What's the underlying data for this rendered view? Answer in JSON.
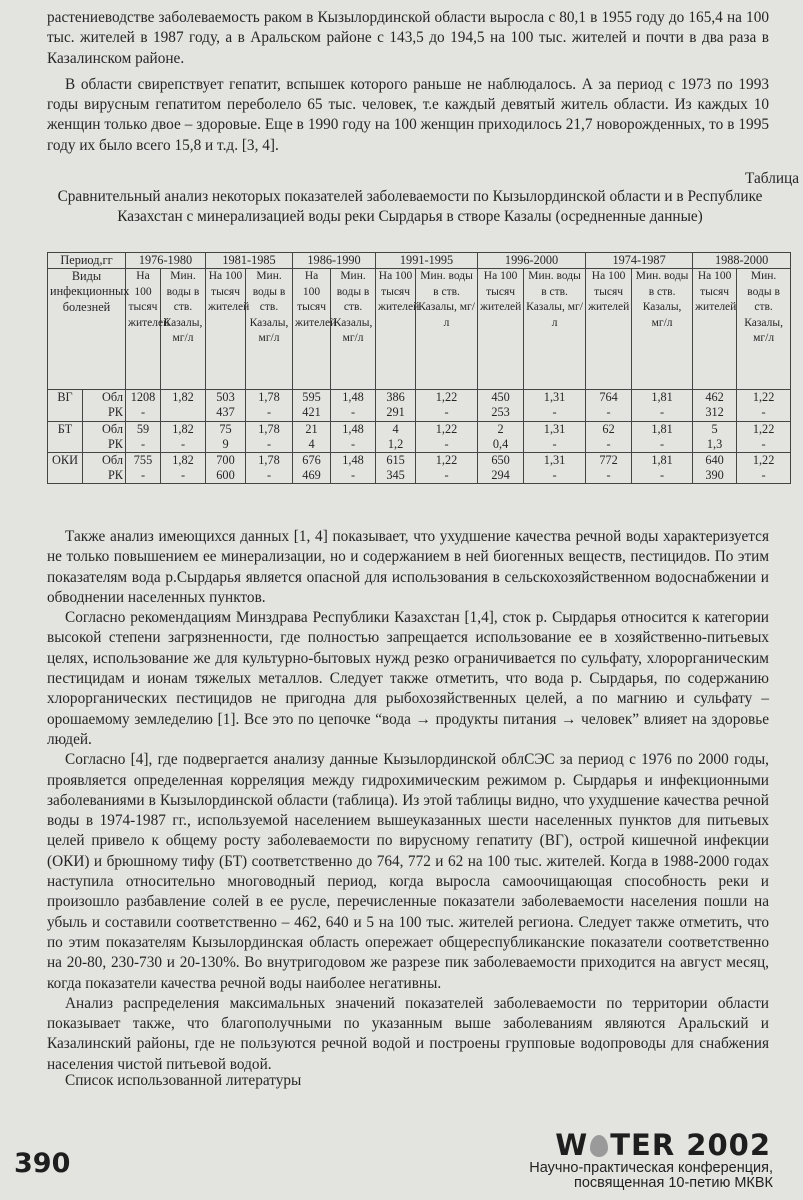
{
  "paragraphs_top": [
    "растениеводстве заболеваемость раком в Кызылординской области выросла с 80,1 в 1955 году до 165,4 на 100 тыс. жителей в 1987 году, а в Аральском районе с 143,5 до 194,5 на 100 тыс. жителей и почти в два раза в Казалинском районе.",
    "В области свирепствует гепатит, вспышек которого раньше не наблюдалось. А за период с 1973 по 1993 годы вирусным гепатитом переболело 65 тыс. человек, т.е каждый девятый житель области. Из каждых 10 женщин только двое – здоровые. Еще в 1990 году на 100 женщин приходилось 21,7 новорожденных, то в 1995 году их было всего 15,8 и т.д. [3, 4]."
  ],
  "table": {
    "label": "Таблица",
    "caption": "Сравнительный анализ некоторых показателей заболеваемости по Кызылординской области и в Республике Казахстан с минерализацией воды реки Сырдарья в створе Казалы (осредненные данные)",
    "period_header": "Период,гг",
    "type_header": "Виды инфекционных болезней",
    "periods": [
      "1976-1980",
      "1981-1985",
      "1986-1990",
      "1991-1995",
      "1996-2000",
      "1974-1987",
      "1988-2000"
    ],
    "subheaders": [
      [
        "На 100 тысяч жителей",
        "Мин. воды в ств. Казалы, мг/л"
      ],
      [
        "На 100 тысяч жителей",
        "Мин. воды в ств. Казалы, мг/л"
      ],
      [
        "На 100 тысяч жителей",
        "Мин. воды в ств. Казалы, мг/л"
      ],
      [
        "На 100 тысяч жителей",
        "Мин. воды в ств. Казалы, мг/л"
      ],
      [
        "На 100 тысяч жителей",
        "Мин. воды в ств. Казалы, мг/л"
      ],
      [
        "На 100 тысяч жителей",
        "Мин. воды в ств. Казалы, мг/л"
      ],
      [
        "На 100 тысяч жителей",
        "Мин. воды в ств. Казалы, мг/л"
      ]
    ],
    "region_labels": [
      "Обл",
      "РК"
    ],
    "rows": [
      {
        "disease": "ВГ",
        "values": [
          [
            "1208",
            "-"
          ],
          [
            "1,82",
            ""
          ],
          [
            "503",
            "437"
          ],
          [
            "1,78",
            "-"
          ],
          [
            "595",
            "421"
          ],
          [
            "1,48",
            "-"
          ],
          [
            "386",
            "291"
          ],
          [
            "1,22",
            "-"
          ],
          [
            "450",
            "253"
          ],
          [
            "1,31",
            "-"
          ],
          [
            "764",
            "-"
          ],
          [
            "1,81",
            "-"
          ],
          [
            "462",
            "312"
          ],
          [
            "1,22",
            "-"
          ]
        ]
      },
      {
        "disease": "БТ",
        "values": [
          [
            "59",
            "-"
          ],
          [
            "1,82",
            "-"
          ],
          [
            "75",
            "9"
          ],
          [
            "1,78",
            "-"
          ],
          [
            "21",
            "4"
          ],
          [
            "1,48",
            "-"
          ],
          [
            "4",
            "1,2"
          ],
          [
            "1,22",
            "-"
          ],
          [
            "2",
            "0,4"
          ],
          [
            "1,31",
            "-"
          ],
          [
            "62",
            "-"
          ],
          [
            "1,81",
            "-"
          ],
          [
            "5",
            "1,3"
          ],
          [
            "1,22",
            "-"
          ]
        ]
      },
      {
        "disease": "ОКИ",
        "values": [
          [
            "755",
            "-"
          ],
          [
            "1,82",
            "-"
          ],
          [
            "700",
            "600"
          ],
          [
            "1,78",
            "-"
          ],
          [
            "676",
            "469"
          ],
          [
            "1,48",
            "-"
          ],
          [
            "615",
            "345"
          ],
          [
            "1,22",
            "-"
          ],
          [
            "650",
            "294"
          ],
          [
            "1,31",
            "-"
          ],
          [
            "772",
            "-"
          ],
          [
            "1,81",
            "-"
          ],
          [
            "640",
            "390"
          ],
          [
            "1,22",
            "-"
          ]
        ]
      }
    ]
  },
  "paragraphs_bottom": [
    "Также анализ имеющихся данных [1, 4] показывает, что ухудшение качества речной воды характеризуется не только повышением ее минерализации, но и содержанием в ней биогенных веществ, пестицидов. По этим показателям вода р.Сырдарья является опасной для использования в сельскохозяйственном водоснабжении и обводнении населенных пунктов.",
    "Согласно рекомендациям Минздрава Республики Казахстан [1,4], сток р. Сырдарья относится к категории высокой степени загрязненности, где полностью запрещается использование ее в хозяйственно-питьевых целях, использование же для культурно-бытовых нужд резко ограничивается по сульфату, хлорорганическим пестицидам и ионам тяжелых металлов. Следует также отметить, что вода р. Сырдарья, по содержанию хлорорганических пестицидов не пригодна для рыбохозяйственных целей, а по магнию и сульфату – орошаемому земледелию [1]. Все это по цепочке “вода → продукты питания → человек” влияет на здоровье людей.",
    "Согласно [4], где подвергается анализу данные Кызылординской облСЭС за период с 1976 по 2000 годы, проявляется определенная корреляция между гидрохимическим режимом р. Сырдарья и инфекционными заболеваниями в Кызылординской области (таблица). Из этой таблицы видно, что ухудшение качества речной воды в 1974-1987 гг., используемой населением вышеуказанных шести населенных пунктов для питьевых целей привело к общему росту заболеваемости по вирусному гепатиту (ВГ), острой кишечной инфекции (ОКИ) и брюшному тифу (БТ) соответственно до 764, 772 и 62 на 100 тыс. жителей. Когда в 1988-2000 годах наступила относительно многоводный период, когда выросла самоочищающая способность реки и произошло разбавление солей в ее русле, перечисленные показатели заболеваемости населения пошли на убыль и составили соответственно – 462, 640 и 5 на 100 тыс. жителей региона. Следует также отметить, что по этим показателям Кызылординская область опережает общереспубликанские показатели соответственно на 20-80, 230-730 и 20-130%. Во внутригодовом же разрезе пик заболеваемости приходится на август месяц, когда показатели качества речной воды наиболее негативны.",
    "Анализ распределения максимальных значений показателей заболеваемости по территории области показывает также, что благополучными по указанным выше заболеваниям являются Аральский и Казалинский районы, где не пользуются речной водой и построены групповые водопроводы для снабжения населения чистой питьевой водой."
  ],
  "references_heading": "Список использованной литературы",
  "footer": {
    "page_number": "390",
    "logo_w": "W",
    "logo_rest": "TER 2002",
    "conference_line1": "Научно-практическая конференция,",
    "conference_line2": "посвященная 10-петию МКВК"
  }
}
